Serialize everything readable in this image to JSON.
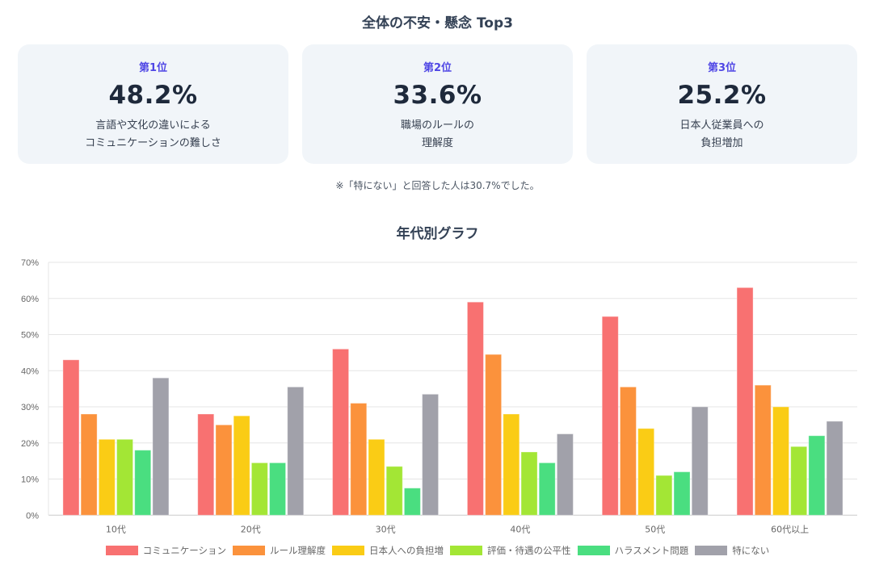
{
  "top3": {
    "title": "全体の不安・懸念 Top3",
    "cards": [
      {
        "rank": "第1位",
        "percent": "48.2%",
        "desc_line1": "言語や文化の違いによる",
        "desc_line2": "コミュニケーションの難しさ"
      },
      {
        "rank": "第2位",
        "percent": "33.6%",
        "desc_line1": "職場のルールの",
        "desc_line2": "理解度"
      },
      {
        "rank": "第3位",
        "percent": "25.2%",
        "desc_line1": "日本人従業員への",
        "desc_line2": "負担増加"
      }
    ],
    "note": "※「特にない」と回答した人は30.7%でした。"
  },
  "colors": {
    "accent": "#4f46e5",
    "card_bg": "#f1f5f9"
  },
  "chart_data": {
    "type": "bar",
    "title": "年代別グラフ",
    "xlabel": "",
    "ylabel": "",
    "ylim": [
      0,
      70
    ],
    "y_tick_step": 10,
    "y_tick_suffix": "%",
    "grid": true,
    "legend_position": "bottom",
    "categories": [
      "10代",
      "20代",
      "30代",
      "40代",
      "50代",
      "60代以上"
    ],
    "series": [
      {
        "name": "コミュニケーション",
        "color": "#f87171",
        "values": [
          43,
          28,
          46,
          59,
          55,
          63
        ]
      },
      {
        "name": "ルール理解度",
        "color": "#fb923c",
        "values": [
          28,
          25,
          31,
          44.5,
          35.5,
          36
        ]
      },
      {
        "name": "日本人への負担増",
        "color": "#facc15",
        "values": [
          21,
          27.5,
          21,
          28,
          24,
          30
        ]
      },
      {
        "name": "評価・待遇の公平性",
        "color": "#a3e635",
        "values": [
          21,
          14.5,
          13.5,
          17.5,
          11,
          19
        ]
      },
      {
        "name": "ハラスメント問題",
        "color": "#4ade80",
        "values": [
          18,
          14.5,
          7.5,
          14.5,
          12,
          22
        ]
      },
      {
        "name": "特にない",
        "color": "#a1a1aa",
        "values": [
          38,
          35.5,
          33.5,
          22.5,
          30,
          26
        ]
      }
    ]
  }
}
